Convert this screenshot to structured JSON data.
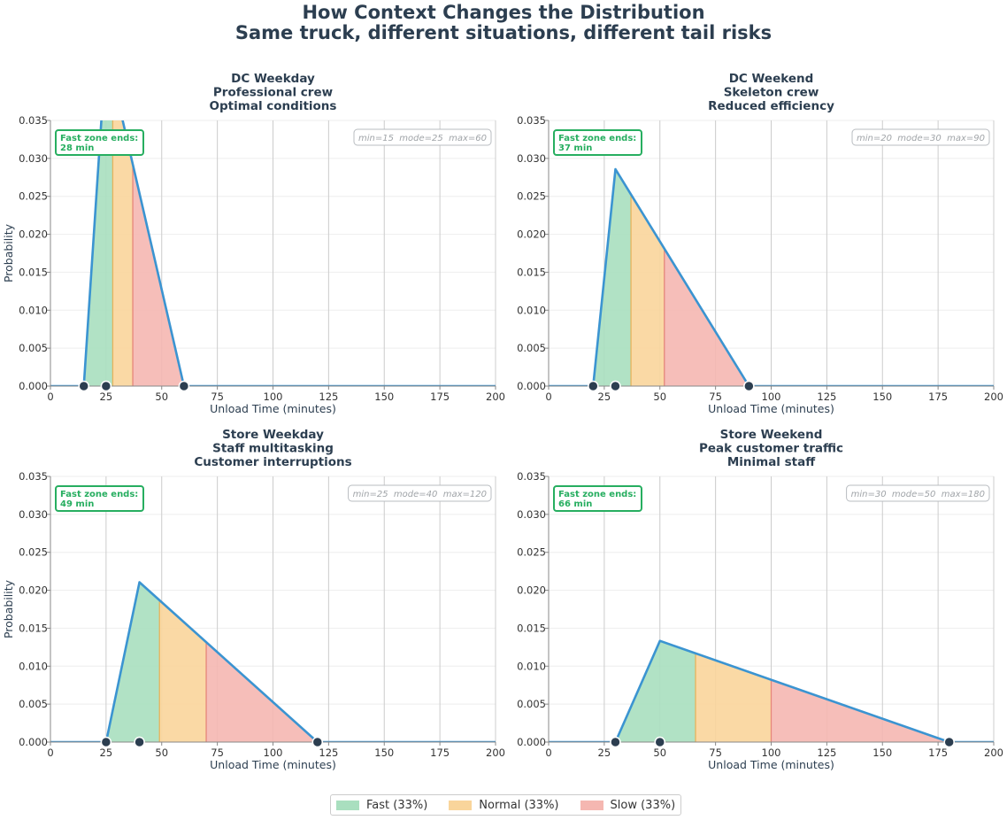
{
  "title": {
    "line1": "How Context Changes the Distribution",
    "line2": "Same truck, different situations, different tail risks"
  },
  "colors": {
    "fast": "#a9dfbf",
    "normal": "#f9d59b",
    "slow": "#f5b7b1",
    "line": "#3b94d1",
    "marker": "#2c3e50",
    "annotation_green": "#27ae60",
    "grid": "#cccccc",
    "text": "#2c3e50"
  },
  "legend": [
    {
      "label": "Fast (33%)",
      "color": "#a9dfbf"
    },
    {
      "label": "Normal (33%)",
      "color": "#f9d59b"
    },
    {
      "label": "Slow (33%)",
      "color": "#f5b7b1"
    }
  ],
  "chart_data": [
    {
      "type": "area",
      "title_lines": [
        "DC Weekday",
        "Professional crew",
        "Optimal conditions"
      ],
      "xlabel": "Unload Time (minutes)",
      "ylabel": "Probability",
      "xlim": [
        0,
        200
      ],
      "ylim": [
        0,
        0.035
      ],
      "xticks": [
        0,
        25,
        50,
        75,
        100,
        125,
        150,
        175,
        200
      ],
      "yticks": [
        0,
        0.005,
        0.01,
        0.015,
        0.02,
        0.025,
        0.03,
        0.035
      ],
      "distribution": "triangular",
      "min": 15,
      "mode": 25,
      "max": 60,
      "fast_end": 28,
      "normal_end": 37,
      "fast_label": "Fast zone ends:",
      "fast_value": "28 min",
      "param_text": "min=15  mode=25  max=60",
      "markers": [
        15,
        25,
        60
      ]
    },
    {
      "type": "area",
      "title_lines": [
        "DC Weekend",
        "Skeleton crew",
        "Reduced efficiency"
      ],
      "xlabel": "Unload Time (minutes)",
      "ylabel": "",
      "xlim": [
        0,
        200
      ],
      "ylim": [
        0,
        0.035
      ],
      "xticks": [
        0,
        25,
        50,
        75,
        100,
        125,
        150,
        175,
        200
      ],
      "yticks": [
        0,
        0.005,
        0.01,
        0.015,
        0.02,
        0.025,
        0.03,
        0.035
      ],
      "distribution": "triangular",
      "min": 20,
      "mode": 30,
      "max": 90,
      "fast_end": 37,
      "normal_end": 52,
      "fast_label": "Fast zone ends:",
      "fast_value": "37 min",
      "param_text": "min=20  mode=30  max=90",
      "markers": [
        20,
        30,
        90
      ]
    },
    {
      "type": "area",
      "title_lines": [
        "Store Weekday",
        "Staff multitasking",
        "Customer interruptions"
      ],
      "xlabel": "Unload Time (minutes)",
      "ylabel": "Probability",
      "xlim": [
        0,
        200
      ],
      "ylim": [
        0,
        0.035
      ],
      "xticks": [
        0,
        25,
        50,
        75,
        100,
        125,
        150,
        175,
        200
      ],
      "yticks": [
        0,
        0.005,
        0.01,
        0.015,
        0.02,
        0.025,
        0.03,
        0.035
      ],
      "distribution": "triangular",
      "min": 25,
      "mode": 40,
      "max": 120,
      "fast_end": 49,
      "normal_end": 70,
      "fast_label": "Fast zone ends:",
      "fast_value": "49 min",
      "param_text": "min=25  mode=40  max=120",
      "markers": [
        25,
        40,
        120
      ]
    },
    {
      "type": "area",
      "title_lines": [
        "Store Weekend",
        "Peak customer traffic",
        "Minimal staff"
      ],
      "xlabel": "Unload Time (minutes)",
      "ylabel": "",
      "xlim": [
        0,
        200
      ],
      "ylim": [
        0,
        0.035
      ],
      "xticks": [
        0,
        25,
        50,
        75,
        100,
        125,
        150,
        175,
        200
      ],
      "yticks": [
        0,
        0.005,
        0.01,
        0.015,
        0.02,
        0.025,
        0.03,
        0.035
      ],
      "distribution": "triangular",
      "min": 30,
      "mode": 50,
      "max": 180,
      "fast_end": 66,
      "normal_end": 100,
      "fast_label": "Fast zone ends:",
      "fast_value": "66 min",
      "param_text": "min=30  mode=50  max=180",
      "markers": [
        30,
        50,
        180
      ]
    }
  ]
}
